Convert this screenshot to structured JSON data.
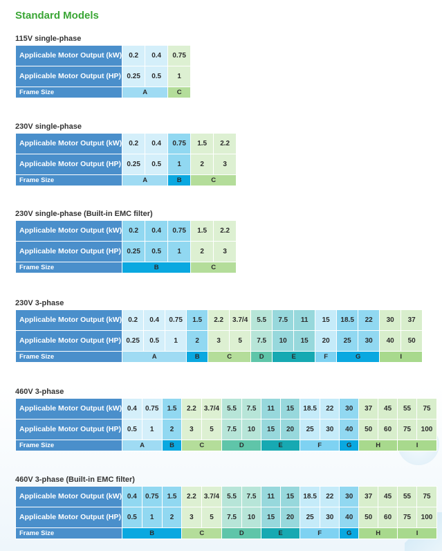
{
  "page_title": "Standard Models",
  "row_labels": {
    "kw": "Applicable Motor Output (kW)",
    "hp": "Applicable Motor Output (HP)",
    "frame": "Frame Size"
  },
  "colors": {
    "A": "#9fdbf3",
    "B": "#0aa8e0",
    "C": "#b4dd9a",
    "D": "#5fc5a9",
    "E": "#17a9b2",
    "F": "#7ed2f2",
    "G": "#0aa8e0",
    "H": "#a8d98d",
    "I": "#a8d98d"
  },
  "sections": [
    {
      "title": "115V single-phase",
      "kw": [
        "0.2",
        "0.4",
        "0.75"
      ],
      "hp": [
        "0.25",
        "0.5",
        "1"
      ],
      "frames": [
        {
          "label": "A",
          "span": 2
        },
        {
          "label": "C",
          "span": 1
        }
      ]
    },
    {
      "title": "230V single-phase",
      "kw": [
        "0.2",
        "0.4",
        "0.75",
        "1.5",
        "2.2"
      ],
      "hp": [
        "0.25",
        "0.5",
        "1",
        "2",
        "3"
      ],
      "frames": [
        {
          "label": "A",
          "span": 2
        },
        {
          "label": "B",
          "span": 1
        },
        {
          "label": "C",
          "span": 2
        }
      ]
    },
    {
      "title": "230V single-phase (Built-in EMC filter)",
      "kw": [
        "0.2",
        "0.4",
        "0.75",
        "1.5",
        "2.2"
      ],
      "hp": [
        "0.25",
        "0.5",
        "1",
        "2",
        "3"
      ],
      "frames": [
        {
          "label": "B",
          "span": 3
        },
        {
          "label": "C",
          "span": 2
        }
      ]
    },
    {
      "title": "230V 3-phase",
      "kw": [
        "0.2",
        "0.4",
        "0.75",
        "1.5",
        "2.2",
        "3.7/4",
        "5.5",
        "7.5",
        "11",
        "15",
        "18.5",
        "22",
        "30",
        "37"
      ],
      "hp": [
        "0.25",
        "0.5",
        "1",
        "2",
        "3",
        "5",
        "7.5",
        "10",
        "15",
        "20",
        "25",
        "30",
        "40",
        "50"
      ],
      "frames": [
        {
          "label": "A",
          "span": 3
        },
        {
          "label": "B",
          "span": 1
        },
        {
          "label": "C",
          "span": 2
        },
        {
          "label": "D",
          "span": 1
        },
        {
          "label": "E",
          "span": 2
        },
        {
          "label": "F",
          "span": 1
        },
        {
          "label": "G",
          "span": 2
        },
        {
          "label": "I",
          "span": 2
        }
      ]
    },
    {
      "title": "460V 3-phase",
      "kw": [
        "0.4",
        "0.75",
        "1.5",
        "2.2",
        "3.7/4",
        "5.5",
        "7.5",
        "11",
        "15",
        "18.5",
        "22",
        "30",
        "37",
        "45",
        "55",
        "75"
      ],
      "hp": [
        "0.5",
        "1",
        "2",
        "3",
        "5",
        "7.5",
        "10",
        "15",
        "20",
        "25",
        "30",
        "40",
        "50",
        "60",
        "75",
        "100"
      ],
      "frames": [
        {
          "label": "A",
          "span": 2
        },
        {
          "label": "B",
          "span": 1
        },
        {
          "label": "C",
          "span": 2
        },
        {
          "label": "D",
          "span": 2
        },
        {
          "label": "E",
          "span": 2
        },
        {
          "label": "F",
          "span": 2
        },
        {
          "label": "G",
          "span": 1
        },
        {
          "label": "H",
          "span": 2
        },
        {
          "label": "I",
          "span": 2
        }
      ]
    },
    {
      "title": "460V 3-phase (Built-in EMC filter)",
      "kw": [
        "0.4",
        "0.75",
        "1.5",
        "2.2",
        "3.7/4",
        "5.5",
        "7.5",
        "11",
        "15",
        "18.5",
        "22",
        "30",
        "37",
        "45",
        "55",
        "75"
      ],
      "hp": [
        "0.5",
        "1",
        "2",
        "3",
        "5",
        "7.5",
        "10",
        "15",
        "20",
        "25",
        "30",
        "40",
        "50",
        "60",
        "75",
        "100"
      ],
      "frames": [
        {
          "label": "B",
          "span": 3
        },
        {
          "label": "C",
          "span": 2
        },
        {
          "label": "D",
          "span": 2
        },
        {
          "label": "E",
          "span": 2
        },
        {
          "label": "F",
          "span": 2
        },
        {
          "label": "G",
          "span": 1
        },
        {
          "label": "H",
          "span": 2
        },
        {
          "label": "I",
          "span": 2
        }
      ]
    }
  ]
}
